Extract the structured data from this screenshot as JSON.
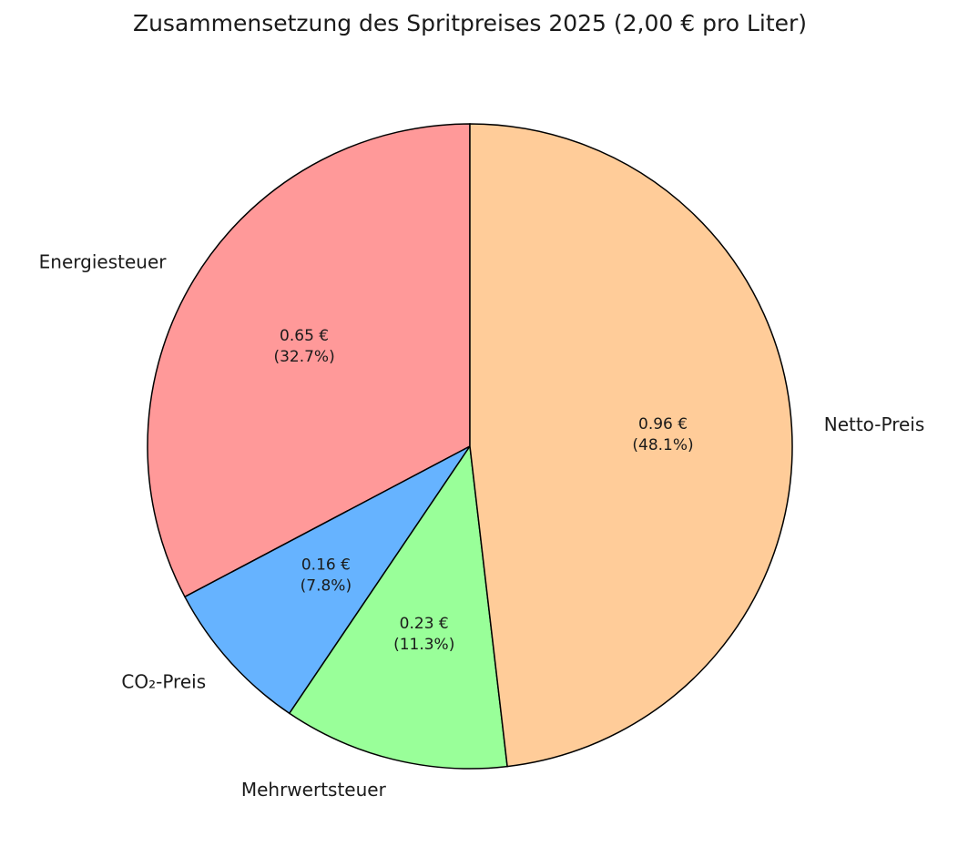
{
  "chart_data": {
    "type": "pie",
    "title": "Zusammensetzung des Spritpreises 2025 (2,00 € pro Liter)",
    "categories": [
      "Energiesteuer",
      "CO₂-Preis",
      "Mehrwertsteuer",
      "Netto-Preis"
    ],
    "values": [
      0.654,
      0.156,
      0.226,
      0.962
    ],
    "value_labels": [
      [
        "0.65 €",
        "(32.7%)"
      ],
      [
        "0.16 €",
        "(7.8%)"
      ],
      [
        "0.23 €",
        "(11.3%)"
      ],
      [
        "0.96 €",
        "(48.1%)"
      ]
    ],
    "colors": [
      "#ff9999",
      "#66b3ff",
      "#99ff99",
      "#ffcc99"
    ]
  }
}
